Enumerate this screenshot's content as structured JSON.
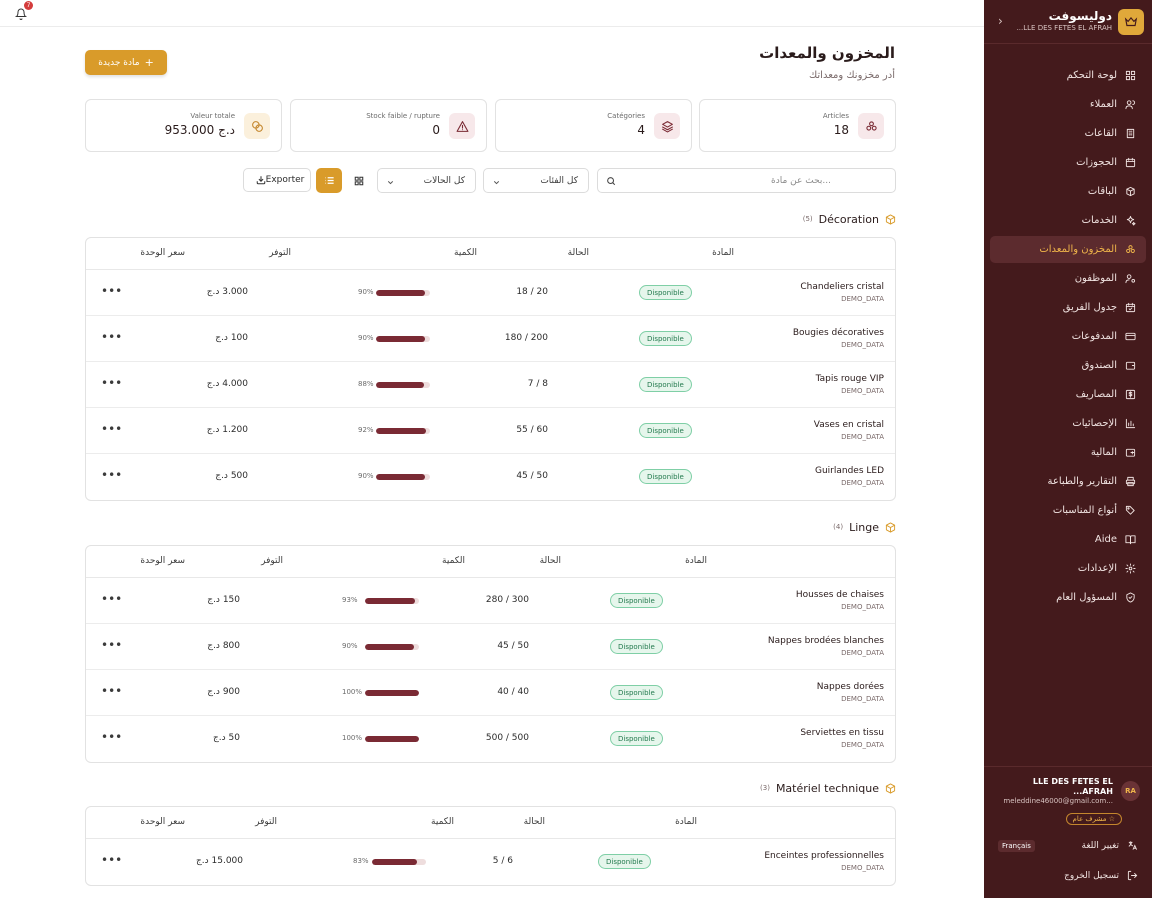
{
  "brand": {
    "name": "دوليسوفت",
    "subtitle": "LLE DES FETES EL AFRAH..."
  },
  "sidebar": {
    "items": [
      {
        "label": "لوحة التحكم",
        "icon": "dashboard-icon"
      },
      {
        "label": "العملاء",
        "icon": "users-icon"
      },
      {
        "label": "القاعات",
        "icon": "building-icon"
      },
      {
        "label": "الحجوزات",
        "icon": "calendar-icon"
      },
      {
        "label": "الباقات",
        "icon": "package-icon"
      },
      {
        "label": "الخدمات",
        "icon": "sparkles-icon"
      },
      {
        "label": "المخزون والمعدات",
        "icon": "boxes-icon",
        "active": true
      },
      {
        "label": "الموظفون",
        "icon": "user-cog-icon"
      },
      {
        "label": "جدول الفريق",
        "icon": "calendar-check-icon"
      },
      {
        "label": "المدفوعات",
        "icon": "credit-card-icon"
      },
      {
        "label": "الصندوق",
        "icon": "wallet-icon"
      },
      {
        "label": "المصاريف",
        "icon": "dollar-icon"
      },
      {
        "label": "الإحصائيات",
        "icon": "chart-icon"
      },
      {
        "label": "المالية",
        "icon": "finance-icon"
      },
      {
        "label": "التقارير والطباعة",
        "icon": "printer-icon"
      },
      {
        "label": "أنواع المناسبات",
        "icon": "tag-icon"
      },
      {
        "label": "Aide",
        "icon": "book-icon"
      },
      {
        "label": "الإعدادات",
        "icon": "settings-icon"
      },
      {
        "label": "المسؤول العام",
        "icon": "shield-icon"
      }
    ],
    "user": {
      "initials": "RA",
      "name": "LLE DES FETES EL AFRAH...",
      "email": "...meleddine46000@gmail.com",
      "role": "مشرف عام"
    },
    "language": {
      "label": "تغيير اللغة",
      "current": "Français"
    },
    "logout": "تسجيل الخروج"
  },
  "topbar": {
    "notifications": "7"
  },
  "page": {
    "title": "المخزون والمعدات",
    "subtitle": "أدر مخزونك ومعداتك",
    "new_button": "مادة جديدة"
  },
  "stats": [
    {
      "label": "Articles",
      "value": "18",
      "icon": "boxes-icon",
      "bg": "#f7e8ea",
      "color": "#7a2a34"
    },
    {
      "label": "Catégories",
      "value": "4",
      "icon": "layers-icon",
      "bg": "#f7e8ea",
      "color": "#7a2a34"
    },
    {
      "label": "Stock faible / rupture",
      "value": "0",
      "icon": "alert-icon",
      "bg": "#f7e8ea",
      "color": "#7a2a34"
    },
    {
      "label": "Valeur totale",
      "value": "953.000 د.ج",
      "icon": "coins-icon",
      "bg": "#fbf0dc",
      "color": "#c4862d"
    }
  ],
  "filters": {
    "search_placeholder": "بحث عن مادة...",
    "category": "كل الفئات",
    "status": "كل الحالات",
    "export": "Exporter"
  },
  "columns": {
    "item": "المادة",
    "status": "الحالة",
    "quantity": "الكمية",
    "availability": "التوفر",
    "unit_price": "سعر الوحدة"
  },
  "sections": [
    {
      "name": "Décoration",
      "count": "(5)",
      "rows": [
        {
          "name": "Chandeliers cristal",
          "sub": "DEMO_DATA",
          "status": "Disponible",
          "qty": "18 / 20",
          "pct": "90%",
          "fill": 0.9,
          "price": "3.000 د.ج"
        },
        {
          "name": "Bougies décoratives",
          "sub": "DEMO_DATA",
          "status": "Disponible",
          "qty": "180 / 200",
          "pct": "90%",
          "fill": 0.9,
          "price": "100 د.ج"
        },
        {
          "name": "Tapis rouge VIP",
          "sub": "DEMO_DATA",
          "status": "Disponible",
          "qty": "7 / 8",
          "pct": "88%",
          "fill": 0.88,
          "price": "4.000 د.ج"
        },
        {
          "name": "Vases en cristal",
          "sub": "DEMO_DATA",
          "status": "Disponible",
          "qty": "55 / 60",
          "pct": "92%",
          "fill": 0.92,
          "price": "1.200 د.ج"
        },
        {
          "name": "Guirlandes LED",
          "sub": "DEMO_DATA",
          "status": "Disponible",
          "qty": "45 / 50",
          "pct": "90%",
          "fill": 0.9,
          "price": "500 د.ج"
        }
      ]
    },
    {
      "name": "Linge",
      "count": "(4)",
      "rows": [
        {
          "name": "Housses de chaises",
          "sub": "DEMO_DATA",
          "status": "Disponible",
          "qty": "280 / 300",
          "pct": "93%",
          "fill": 0.93,
          "price": "150 د.ج"
        },
        {
          "name": "Nappes brodées blanches",
          "sub": "DEMO_DATA",
          "status": "Disponible",
          "qty": "45 / 50",
          "pct": "90%",
          "fill": 0.9,
          "price": "800 د.ج"
        },
        {
          "name": "Nappes dorées",
          "sub": "DEMO_DATA",
          "status": "Disponible",
          "qty": "40 / 40",
          "pct": "100%",
          "fill": 1.0,
          "price": "900 د.ج"
        },
        {
          "name": "Serviettes en tissu",
          "sub": "DEMO_DATA",
          "status": "Disponible",
          "qty": "500 / 500",
          "pct": "100%",
          "fill": 1.0,
          "price": "50 د.ج"
        }
      ]
    },
    {
      "name": "Matériel technique",
      "count": "(3)",
      "rows": [
        {
          "name": "Enceintes professionnelles",
          "sub": "DEMO_DATA",
          "status": "Disponible",
          "qty": "5 / 6",
          "pct": "83%",
          "fill": 0.83,
          "price": "15.000 د.ج"
        }
      ]
    }
  ]
}
